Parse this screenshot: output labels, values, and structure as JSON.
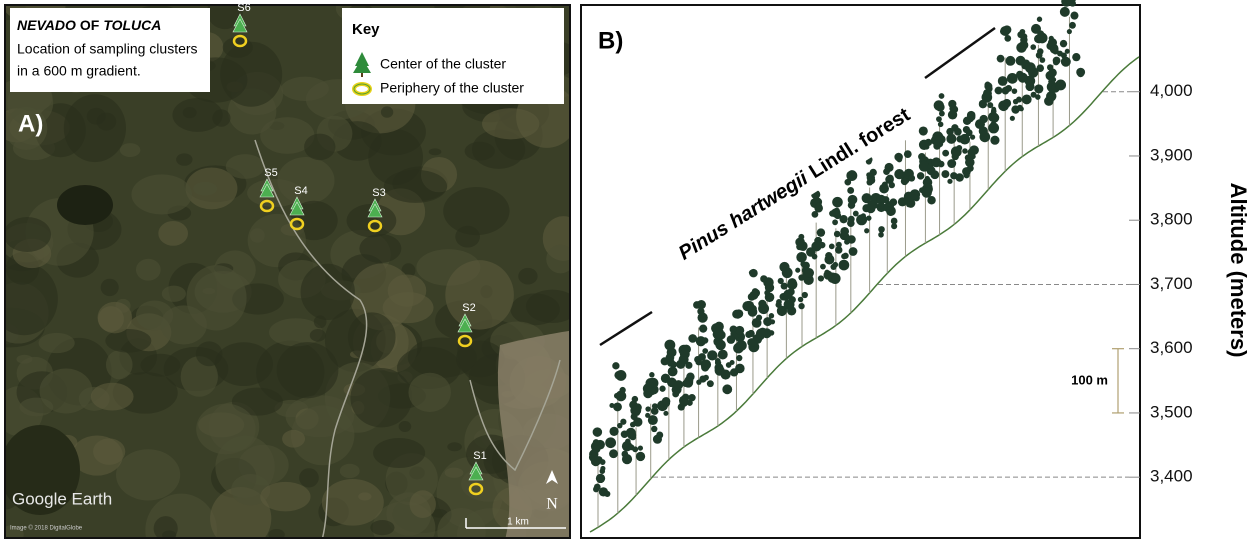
{
  "panel_a": {
    "label": "A)",
    "title": {
      "italic_start": "NEVADO",
      "middle": "OF",
      "italic_end": "TOLUCA"
    },
    "subtitle_lines": [
      "Location of sampling clusters",
      "in a 600 m gradient."
    ],
    "key": {
      "title": "Key",
      "items": [
        "Center of the cluster",
        "Periphery of the cluster"
      ]
    },
    "sites": [
      "S1",
      "S2",
      "S3",
      "S4",
      "S5",
      "S6"
    ],
    "watermark": "Google Earth",
    "scale": "1 km",
    "north": "N",
    "credit": "Image © 2018 DigitalGlobe"
  },
  "panel_b": {
    "label": "B)",
    "forest_label": {
      "italic": "Pinus hartwegii",
      "rest": "Lindl. forest"
    },
    "axis_title": "Altitude (meters)",
    "ylim": [
      3310,
      4135
    ],
    "yticks": [
      {
        "value": 3400,
        "label": "3,400"
      },
      {
        "value": 3500,
        "label": "3,500"
      },
      {
        "value": 3600,
        "label": "3,600"
      },
      {
        "value": 3700,
        "label": "3,700"
      },
      {
        "value": 3800,
        "label": "3,800"
      },
      {
        "value": 3900,
        "label": "3,900"
      },
      {
        "value": 4000,
        "label": "4,000"
      }
    ],
    "scale_bar": "100 m"
  }
}
